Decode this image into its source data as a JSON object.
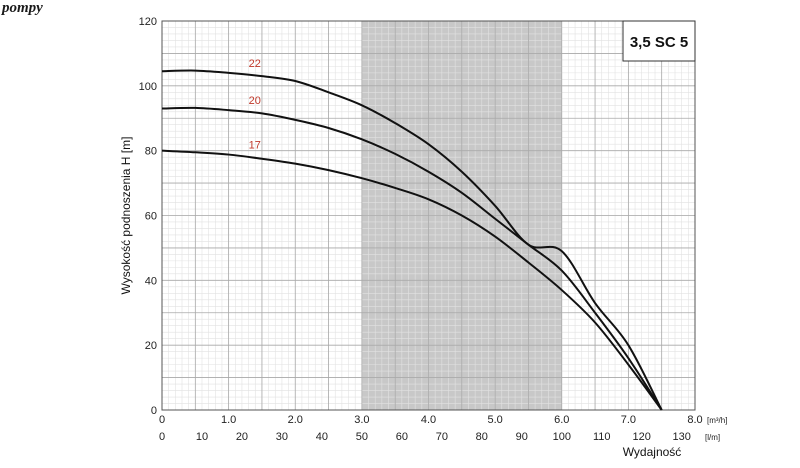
{
  "header": {
    "word": "pompy"
  },
  "chart_data": {
    "type": "line",
    "title": "3,5 SC 5",
    "ylabel": "Wysokość podnoszenia H [m]",
    "xlabel": "Wydajność",
    "ylim": [
      0,
      120
    ],
    "yticks": [
      "0",
      "20",
      "40",
      "60",
      "80",
      "100",
      "120"
    ],
    "x_primary": {
      "unit": "[m³/h]",
      "lim": [
        0,
        8
      ],
      "ticks": [
        "0",
        "1.0",
        "2.0",
        "3.0",
        "4.0",
        "5.0",
        "6.0",
        "7.0",
        "8.0"
      ]
    },
    "x_secondary": {
      "unit": "[l/m]",
      "lim": [
        0,
        133.33
      ],
      "ticks": [
        "0",
        "10",
        "20",
        "30",
        "40",
        "50",
        "60",
        "70",
        "80",
        "90",
        "100",
        "110",
        "120",
        "130"
      ]
    },
    "shaded_region": {
      "x_from": 3.0,
      "x_to": 6.0,
      "color": "#c8c8c8"
    },
    "grid": true,
    "series": [
      {
        "name": "22",
        "color": "#111111",
        "x": [
          0,
          0.5,
          1.0,
          1.5,
          2.0,
          2.5,
          3.0,
          3.5,
          4.0,
          4.5,
          5.0,
          5.5,
          6.0,
          6.5,
          7.0,
          7.5
        ],
        "y": [
          104.5,
          104.7,
          104,
          103,
          101.5,
          98,
          94,
          88.5,
          82,
          73.5,
          63,
          51,
          49,
          33,
          20,
          0
        ]
      },
      {
        "name": "20",
        "color": "#111111",
        "x": [
          0,
          0.5,
          1.0,
          1.5,
          2.0,
          2.5,
          3.0,
          3.5,
          4.0,
          4.5,
          5.0,
          5.5,
          6.0,
          6.5,
          7.0,
          7.5
        ],
        "y": [
          93,
          93.2,
          92.5,
          91.5,
          89.5,
          87,
          83.5,
          79,
          73.5,
          67,
          59,
          51,
          43,
          30,
          16,
          0
        ]
      },
      {
        "name": "17",
        "color": "#111111",
        "x": [
          0,
          0.5,
          1.0,
          1.5,
          2.0,
          2.5,
          3.0,
          3.5,
          4.0,
          4.5,
          5.0,
          5.5,
          6.0,
          6.5,
          7.0,
          7.5
        ],
        "y": [
          80,
          79.5,
          78.8,
          77.5,
          76,
          74,
          71.5,
          68.5,
          65,
          60,
          53.5,
          45.5,
          37,
          27,
          14,
          0
        ]
      }
    ]
  }
}
